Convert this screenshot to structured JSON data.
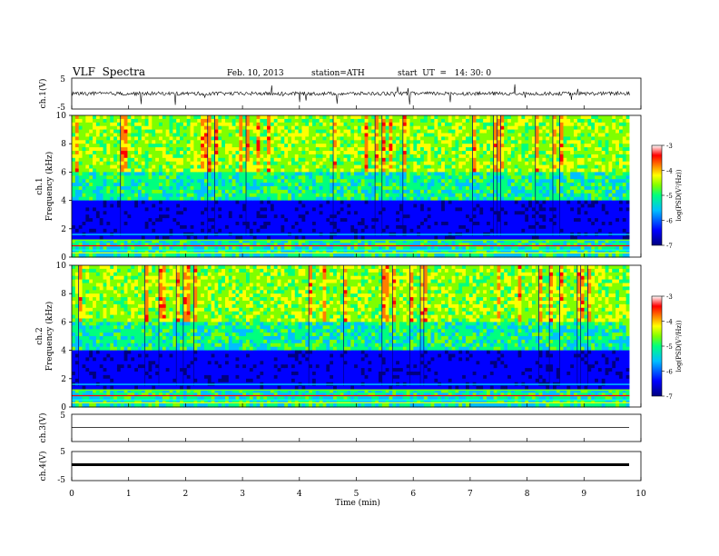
{
  "header": {
    "title": "VLF  Spectra",
    "date": "Feb. 10, 2013",
    "station": "station=ATH",
    "start": "start  UT  =   14: 30: 0"
  },
  "chart_data": [
    {
      "type": "line",
      "title": "",
      "ylabel": "ch.1(V)",
      "xlim": [
        0,
        10
      ],
      "ylim": [
        -5,
        5
      ],
      "yticks": [
        5,
        -5
      ],
      "series": [
        {
          "values": [
            0.0,
            0.3,
            -0.2,
            0.5,
            -0.4,
            0.2,
            0.1,
            -0.3,
            0.4,
            -0.1
          ]
        }
      ]
    },
    {
      "type": "heatmap",
      "title": "",
      "ylabel": "ch.1",
      "ylabel2": "Frequency  (kHz)",
      "xlim": [
        0,
        10
      ],
      "ylim": [
        0,
        10
      ],
      "yticks": [
        0,
        2,
        4,
        6,
        8,
        10
      ],
      "colorbar": {
        "label": "log(PSD(V²/Hz))",
        "range": [
          -7,
          -3
        ],
        "ticks": [
          -3,
          -4,
          -5,
          -6,
          -7
        ]
      }
    },
    {
      "type": "heatmap",
      "title": "",
      "ylabel": "ch.2",
      "ylabel2": "Frequency  (kHz)",
      "xlim": [
        0,
        10
      ],
      "ylim": [
        0,
        10
      ],
      "yticks": [
        0,
        2,
        4,
        6,
        8,
        10
      ],
      "colorbar": {
        "label": "log(PSD(V²/Hz))",
        "range": [
          -7,
          -3
        ],
        "ticks": [
          -3,
          -4,
          -5,
          -6,
          -7
        ]
      }
    },
    {
      "type": "line",
      "title": "",
      "ylabel": "ch.3(V)",
      "xlim": [
        0,
        10
      ],
      "ylim": [
        -5,
        5
      ],
      "yticks": [
        5
      ],
      "series": [
        {
          "values": [
            0.5,
            0.5,
            0.5,
            0.5,
            0.5,
            0.5,
            0.5,
            0.5,
            0.5,
            0.5
          ]
        }
      ]
    },
    {
      "type": "line",
      "title": "",
      "ylabel": "ch.4(V)",
      "xlim": [
        0,
        10
      ],
      "ylim": [
        -5,
        5
      ],
      "yticks": [
        5,
        -5
      ],
      "xlabel": "Time  (min)",
      "xticks": [
        0,
        1,
        2,
        3,
        4,
        5,
        6,
        7,
        8,
        9,
        10
      ],
      "series": [
        {
          "values": [
            0.5,
            0.5,
            0.5,
            0.5,
            0.5,
            0.5,
            0.5,
            0.5,
            0.5,
            0.5
          ]
        }
      ]
    }
  ],
  "colors": {
    "colormap": [
      "#00007f",
      "#0000ff",
      "#00bfff",
      "#00ff7f",
      "#7fff00",
      "#ffff00",
      "#ff7f00",
      "#ff0000",
      "#ffffff"
    ]
  }
}
